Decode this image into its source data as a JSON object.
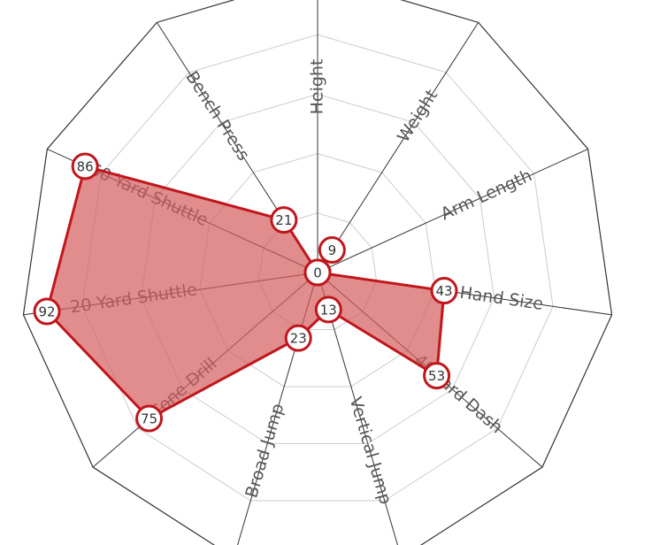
{
  "chart_data": {
    "type": "radar",
    "title": "",
    "axes": [
      "Height",
      "Weight",
      "Arm Length",
      "Hand Size",
      "40 Yard Dash",
      "Vertical Jump",
      "Broad Jump",
      "3-Cone Drill",
      "20 Yard Shuttle",
      "60 Yard Shuttle",
      "Bench Press"
    ],
    "range": [
      0,
      100
    ],
    "grid_levels": [
      20,
      40,
      60,
      80,
      100
    ],
    "grid": true,
    "values": [
      0,
      9,
      0,
      43,
      53,
      13,
      23,
      75,
      92,
      86,
      21
    ],
    "point_labels": [
      "0",
      "9",
      "0",
      "43",
      "53",
      "13",
      "23",
      "75",
      "92",
      "86",
      "21"
    ],
    "colors": {
      "fill": "#d65c5c",
      "stroke": "#c0161c",
      "grid": "#cccccc",
      "frame": "#333333"
    }
  }
}
